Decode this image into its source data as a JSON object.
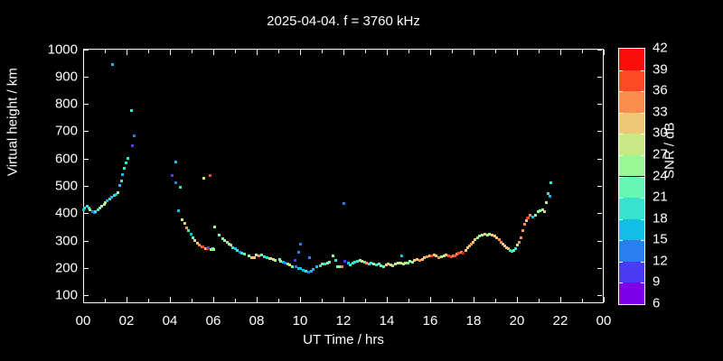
{
  "title": "2025-04-04. f = 3760 kHz",
  "colors": {
    "background": "#000000",
    "foreground": "#ffffff"
  },
  "chart_data": {
    "type": "scatter",
    "title": "2025-04-04. f = 3760 kHz",
    "xlabel": "UT Time / hrs",
    "ylabel": "Virtual height / km",
    "colorbar_label": "SNR / dB",
    "xlim_hours": [
      0,
      24
    ],
    "xtick_labels": [
      "00",
      "02",
      "04",
      "06",
      "08",
      "10",
      "12",
      "14",
      "16",
      "18",
      "20",
      "22",
      "00"
    ],
    "ytick_values": [
      100,
      200,
      300,
      400,
      500,
      600,
      700,
      800,
      900,
      1000
    ],
    "grid": false,
    "snr_scale": {
      "min": 6,
      "max": 42,
      "step": 3,
      "tick_labels": [
        6,
        9,
        12,
        15,
        18,
        21,
        24,
        27,
        30,
        33,
        36,
        39,
        42
      ],
      "bin_colors_low_to_high": [
        "#7D00E8",
        "#4A3CF5",
        "#2B7EF0",
        "#13BEE4",
        "#35E3CE",
        "#66F7B2",
        "#99F796",
        "#C8E985",
        "#EFC678",
        "#FB8D4E",
        "#FB4A25",
        "#FB0D09"
      ]
    },
    "points_hr_km_snr": [
      [
        0.0,
        414,
        16
      ],
      [
        0.08,
        421,
        19
      ],
      [
        0.17,
        428,
        19
      ],
      [
        0.25,
        419,
        19
      ],
      [
        0.33,
        413,
        25
      ],
      [
        0.42,
        406,
        13
      ],
      [
        0.5,
        404,
        13
      ],
      [
        0.58,
        406,
        19
      ],
      [
        0.67,
        413,
        19
      ],
      [
        0.76,
        419,
        22
      ],
      [
        0.85,
        426,
        25
      ],
      [
        0.96,
        433,
        25
      ],
      [
        1.04,
        439,
        28
      ],
      [
        1.12,
        446,
        16
      ],
      [
        1.21,
        452,
        19
      ],
      [
        1.32,
        459,
        16
      ],
      [
        1.43,
        465,
        19
      ],
      [
        1.54,
        470,
        16
      ],
      [
        1.35,
        945,
        16
      ],
      [
        1.62,
        475,
        25
      ],
      [
        1.68,
        503,
        16
      ],
      [
        1.76,
        520,
        19
      ],
      [
        1.82,
        542,
        16
      ],
      [
        1.88,
        566,
        19
      ],
      [
        1.96,
        584,
        19
      ],
      [
        2.07,
        600,
        19
      ],
      [
        2.21,
        775,
        19
      ],
      [
        2.25,
        648,
        10
      ],
      [
        2.35,
        685,
        13
      ],
      [
        4.12,
        540,
        10
      ],
      [
        4.25,
        511,
        13
      ],
      [
        4.29,
        588,
        16
      ],
      [
        4.46,
        496,
        19
      ],
      [
        4.4,
        410,
        16
      ],
      [
        4.57,
        377,
        28
      ],
      [
        4.68,
        363,
        31
      ],
      [
        4.78,
        347,
        34
      ],
      [
        4.86,
        336,
        19
      ],
      [
        4.96,
        325,
        16
      ],
      [
        5.06,
        311,
        22
      ],
      [
        5.15,
        301,
        31
      ],
      [
        5.26,
        292,
        31
      ],
      [
        5.37,
        283,
        34
      ],
      [
        5.46,
        279,
        34
      ],
      [
        5.54,
        277,
        37
      ],
      [
        5.63,
        272,
        31
      ],
      [
        5.72,
        270,
        37
      ],
      [
        5.79,
        274,
        10
      ],
      [
        5.88,
        267,
        25
      ],
      [
        5.96,
        272,
        22
      ],
      [
        6.04,
        269,
        25
      ],
      [
        5.55,
        530,
        28
      ],
      [
        5.85,
        537,
        37
      ],
      [
        6.05,
        350,
        25
      ],
      [
        6.25,
        322,
        22
      ],
      [
        6.43,
        307,
        22
      ],
      [
        6.54,
        300,
        25
      ],
      [
        6.63,
        294,
        22
      ],
      [
        6.71,
        289,
        25
      ],
      [
        6.8,
        283,
        31
      ],
      [
        6.9,
        276,
        19
      ],
      [
        7.01,
        271,
        16
      ],
      [
        7.11,
        265,
        19
      ],
      [
        7.21,
        259,
        14
      ],
      [
        7.32,
        255,
        19
      ],
      [
        7.43,
        250,
        22
      ],
      [
        7.63,
        245,
        25
      ],
      [
        7.77,
        240,
        31
      ],
      [
        7.88,
        237,
        31
      ],
      [
        7.99,
        248,
        25
      ],
      [
        8.11,
        245,
        34
      ],
      [
        8.24,
        248,
        22
      ],
      [
        8.35,
        241,
        19
      ],
      [
        8.47,
        237,
        19
      ],
      [
        8.6,
        235,
        31
      ],
      [
        8.65,
        235,
        28
      ],
      [
        8.76,
        232,
        28
      ],
      [
        8.87,
        228,
        25
      ],
      [
        9.05,
        232,
        22
      ],
      [
        9.12,
        226,
        25
      ],
      [
        9.24,
        223,
        16
      ],
      [
        9.32,
        218,
        13
      ],
      [
        9.43,
        215,
        25
      ],
      [
        9.54,
        211,
        28
      ],
      [
        9.65,
        206,
        22
      ],
      [
        9.76,
        229,
        10
      ],
      [
        9.82,
        204,
        13
      ],
      [
        9.93,
        198,
        16
      ],
      [
        9.92,
        259,
        13
      ],
      [
        10.01,
        288,
        13
      ],
      [
        10.04,
        199,
        16
      ],
      [
        10.15,
        193,
        16
      ],
      [
        10.26,
        188,
        19
      ],
      [
        10.4,
        186,
        13
      ],
      [
        10.42,
        237,
        13
      ],
      [
        10.51,
        190,
        16
      ],
      [
        10.62,
        195,
        16
      ],
      [
        10.79,
        206,
        16
      ],
      [
        10.93,
        210,
        19
      ],
      [
        11.04,
        215,
        22
      ],
      [
        11.15,
        217,
        19
      ],
      [
        11.26,
        219,
        25
      ],
      [
        11.37,
        222,
        22
      ],
      [
        11.51,
        244,
        25
      ],
      [
        11.63,
        227,
        19
      ],
      [
        11.74,
        205,
        22
      ],
      [
        11.82,
        204,
        25
      ],
      [
        11.93,
        205,
        34
      ],
      [
        12.04,
        437,
        13
      ],
      [
        12.07,
        224,
        10
      ],
      [
        12.21,
        219,
        16
      ],
      [
        12.32,
        213,
        19
      ],
      [
        12.43,
        219,
        19
      ],
      [
        12.54,
        222,
        19
      ],
      [
        12.65,
        225,
        19
      ],
      [
        12.76,
        227,
        25
      ],
      [
        12.87,
        224,
        28
      ],
      [
        12.96,
        221,
        22
      ],
      [
        13.07,
        218,
        34
      ],
      [
        13.18,
        214,
        19
      ],
      [
        13.29,
        220,
        19
      ],
      [
        13.4,
        216,
        25
      ],
      [
        13.51,
        212,
        19
      ],
      [
        13.63,
        216,
        22
      ],
      [
        13.74,
        210,
        22
      ],
      [
        13.85,
        205,
        22
      ],
      [
        13.97,
        211,
        31
      ],
      [
        14.08,
        215,
        31
      ],
      [
        14.2,
        213,
        27
      ],
      [
        14.28,
        208,
        31
      ],
      [
        14.4,
        214,
        25
      ],
      [
        14.51,
        218,
        27
      ],
      [
        14.64,
        220,
        28
      ],
      [
        14.7,
        246,
        16
      ],
      [
        14.76,
        216,
        25
      ],
      [
        14.87,
        220,
        27
      ],
      [
        14.99,
        218,
        22
      ],
      [
        15.07,
        225,
        25
      ],
      [
        15.18,
        223,
        25
      ],
      [
        15.29,
        227,
        31
      ],
      [
        15.4,
        231,
        31
      ],
      [
        15.51,
        229,
        34
      ],
      [
        15.63,
        233,
        31
      ],
      [
        15.74,
        238,
        31
      ],
      [
        15.85,
        242,
        34
      ],
      [
        15.96,
        246,
        31
      ],
      [
        16.07,
        244,
        37
      ],
      [
        16.18,
        249,
        31
      ],
      [
        16.29,
        244,
        31
      ],
      [
        16.4,
        240,
        34
      ],
      [
        16.51,
        242,
        25
      ],
      [
        16.63,
        246,
        28
      ],
      [
        16.74,
        249,
        31
      ],
      [
        16.85,
        244,
        37
      ],
      [
        16.96,
        242,
        37
      ],
      [
        17.07,
        244,
        34
      ],
      [
        17.15,
        246,
        37
      ],
      [
        17.24,
        250,
        34
      ],
      [
        17.32,
        255,
        37
      ],
      [
        17.43,
        259,
        34
      ],
      [
        17.51,
        255,
        40
      ],
      [
        17.65,
        266,
        31
      ],
      [
        17.74,
        274,
        31
      ],
      [
        17.82,
        281,
        31
      ],
      [
        17.9,
        288,
        34
      ],
      [
        17.99,
        294,
        31
      ],
      [
        18.07,
        303,
        31
      ],
      [
        18.18,
        310,
        25
      ],
      [
        18.29,
        316,
        25
      ],
      [
        18.4,
        321,
        25
      ],
      [
        18.51,
        323,
        31
      ],
      [
        18.63,
        321,
        25
      ],
      [
        18.74,
        323,
        25
      ],
      [
        18.85,
        321,
        31
      ],
      [
        18.96,
        316,
        31
      ],
      [
        19.07,
        310,
        31
      ],
      [
        19.18,
        303,
        34
      ],
      [
        19.26,
        296,
        34
      ],
      [
        19.35,
        288,
        31
      ],
      [
        19.43,
        281,
        31
      ],
      [
        19.51,
        274,
        31
      ],
      [
        19.6,
        270,
        31
      ],
      [
        19.68,
        266,
        19
      ],
      [
        19.76,
        261,
        19
      ],
      [
        19.85,
        266,
        22
      ],
      [
        19.93,
        272,
        19
      ],
      [
        20.01,
        283,
        25
      ],
      [
        20.1,
        294,
        34
      ],
      [
        20.18,
        310,
        34
      ],
      [
        20.28,
        338,
        34
      ],
      [
        20.35,
        360,
        34
      ],
      [
        20.43,
        373,
        31
      ],
      [
        20.46,
        384,
        40
      ],
      [
        20.54,
        382,
        37
      ],
      [
        20.62,
        392,
        34
      ],
      [
        20.74,
        387,
        16
      ],
      [
        20.85,
        395,
        25
      ],
      [
        20.96,
        406,
        25
      ],
      [
        21.07,
        409,
        25
      ],
      [
        21.17,
        414,
        25
      ],
      [
        21.25,
        405,
        31
      ],
      [
        21.35,
        439,
        28
      ],
      [
        21.44,
        472,
        19
      ],
      [
        21.5,
        464,
        16
      ],
      [
        21.58,
        512,
        19
      ]
    ]
  }
}
